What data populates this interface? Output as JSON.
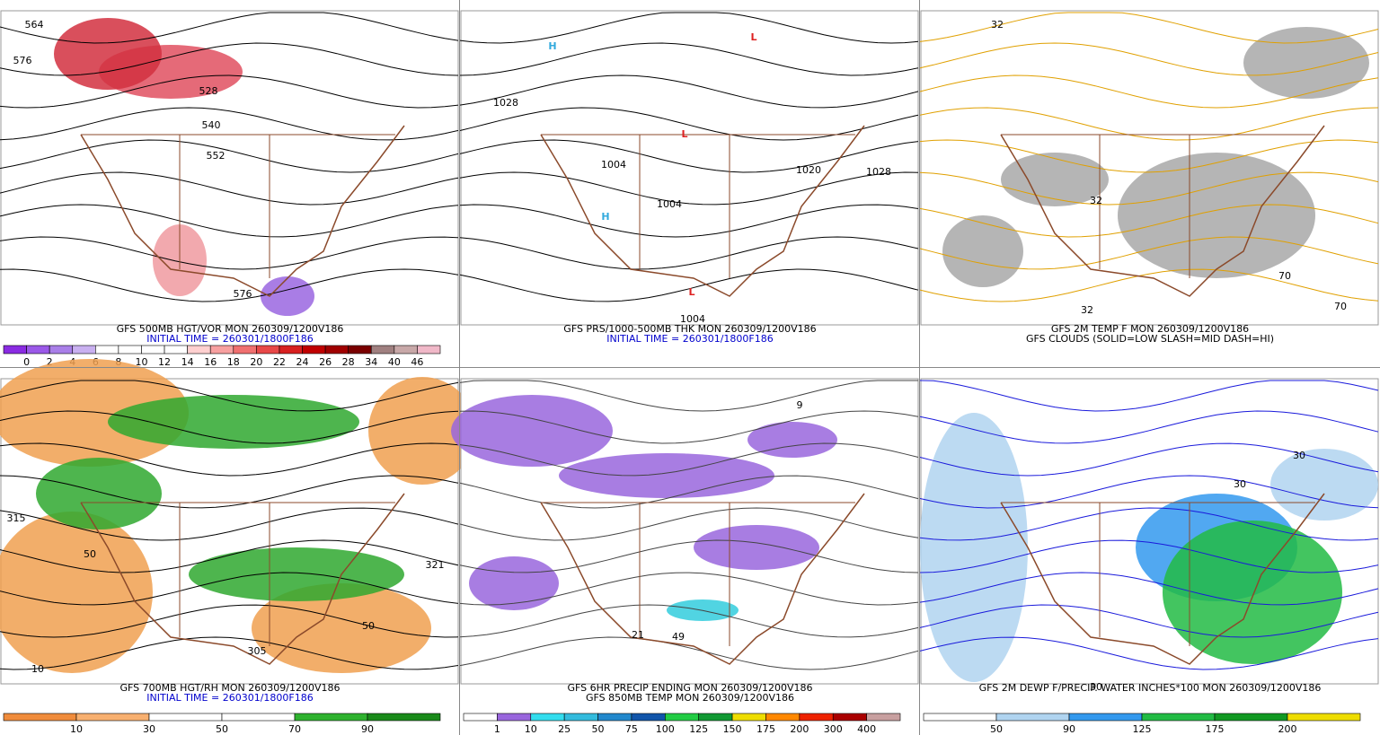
{
  "panels": [
    {
      "captions": [
        "GFS 500MB HGT/VOR MON 260309/1200V186",
        "INITIAL TIME = 260301/1800F186"
      ],
      "caption_colors": [
        "#000000",
        "#0000cc"
      ],
      "colorbar": {
        "labels": [
          "0",
          "2",
          "4",
          "6",
          "8",
          "10",
          "12",
          "14",
          "16",
          "18",
          "20",
          "22",
          "24",
          "26",
          "28",
          "34",
          "40",
          "46"
        ],
        "colors": [
          "#8a2be2",
          "#9b59e8",
          "#a97fe8",
          "#c9b0f0",
          "#ffffff",
          "#ffffff",
          "#ffffff",
          "#ffffff",
          "#ffd0d0",
          "#f7a0a0",
          "#f07070",
          "#e84848",
          "#d82020",
          "#c00000",
          "#a00000",
          "#7a0000",
          "#a08080",
          "#c8a8a8",
          "#f0b8c8"
        ]
      },
      "map_labels": [
        "564",
        "576",
        "528",
        "540",
        "552",
        "576"
      ]
    },
    {
      "captions": [
        "GFS PRS/1000-500MB THK MON 260309/1200V186",
        "INITIAL TIME = 260301/1800F186"
      ],
      "caption_colors": [
        "#000000",
        "#0000cc"
      ],
      "map_labels": [
        "1028",
        "1004",
        "1004",
        "1020",
        "1028",
        "1004",
        "H",
        "H",
        "L",
        "L",
        "L"
      ]
    },
    {
      "captions": [
        "GFS 2M TEMP F MON 260309/1200V186",
        "GFS CLOUDS (SOLID=LOW SLASH=MID DASH=HI)"
      ],
      "caption_colors": [
        "#000000",
        "#000000"
      ],
      "map_labels": [
        "32",
        "32",
        "32",
        "70",
        "70"
      ]
    },
    {
      "captions": [
        "GFS 700MB HGT/RH MON 260309/1200V186",
        "INITIAL TIME = 260301/1800F186"
      ],
      "caption_colors": [
        "#000000",
        "#0000cc"
      ],
      "colorbar": {
        "labels": [
          "10",
          "30",
          "50",
          "70",
          "90"
        ],
        "colors": [
          "#f08c3c",
          "#f8b070",
          "#ffffff",
          "#ffffff",
          "#2fb22f",
          "#1a8a1a"
        ]
      },
      "map_labels": [
        "315",
        "50",
        "321",
        "50",
        "10",
        "305"
      ]
    },
    {
      "captions": [
        "GFS 6HR PRECIP ENDING MON 260309/1200V186",
        "GFS 850MB TEMP MON 260309/1200V186"
      ],
      "caption_colors": [
        "#000000",
        "#000000"
      ],
      "colorbar": {
        "labels": [
          "1",
          "10",
          "25",
          "50",
          "75",
          "100",
          "125",
          "150",
          "175",
          "200",
          "300",
          "400"
        ],
        "colors": [
          "#ffffff",
          "#9966dd",
          "#33ddee",
          "#33bbdd",
          "#2288cc",
          "#1155aa",
          "#22cc44",
          "#119933",
          "#eedd00",
          "#ff8800",
          "#ee2200",
          "#aa0000",
          "#c8a0a0"
        ]
      },
      "map_labels": [
        "9",
        "21",
        "49"
      ]
    },
    {
      "captions": [
        "GFS 2M DEWP F/PRECIP. WATER INCHES*100 MON 260309/1200V186"
      ],
      "caption_colors": [
        "#000000"
      ],
      "colorbar": {
        "labels": [
          "50",
          "90",
          "125",
          "175",
          "200"
        ],
        "colors": [
          "#ffffff",
          "#b0d4f0",
          "#3399ee",
          "#22bb44",
          "#119922",
          "#eedd00"
        ]
      },
      "map_labels": [
        "30",
        "30",
        "30"
      ]
    }
  ]
}
